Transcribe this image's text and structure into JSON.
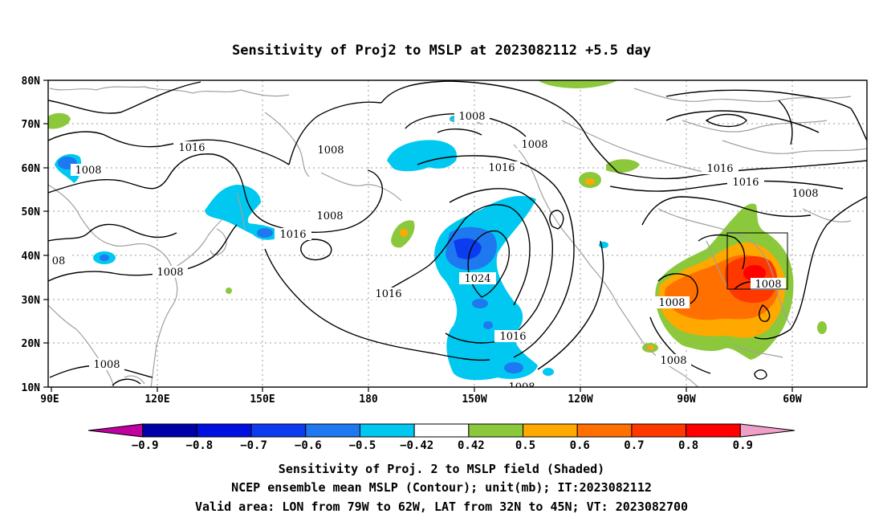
{
  "title": "Sensitivity of Proj2 to MSLP at 2023082112 +5.5 day",
  "lat_ticks": [
    "80N",
    "70N",
    "60N",
    "50N",
    "40N",
    "30N",
    "20N",
    "10N"
  ],
  "lon_ticks": [
    "90E",
    "120E",
    "150E",
    "180",
    "150W",
    "120W",
    "90W",
    "60W"
  ],
  "contour_labels": [
    "1008",
    "1008",
    "1016",
    "1008",
    "1008",
    "1008",
    "1016",
    "1016",
    "1008",
    "1016",
    "1016",
    "1024",
    "1016",
    "1016",
    "1008",
    "1008",
    "1008",
    "1008",
    "1008",
    "1008",
    "08"
  ],
  "colorbar": {
    "ticks": [
      "-0.9",
      "-0.8",
      "-0.7",
      "-0.6",
      "-0.5",
      "-0.42",
      "0.42",
      "0.5",
      "0.6",
      "0.7",
      "0.8",
      "0.9"
    ],
    "colors": [
      "#c000a0",
      "#0000a8",
      "#0010e0",
      "#0c3cf0",
      "#1e78f0",
      "#00c8f0",
      "#ffffff",
      "#8cc83c",
      "#ffa800",
      "#ff7000",
      "#ff3800",
      "#ff0000",
      "#f0a0c8"
    ]
  },
  "footer": {
    "line1": "Sensitivity of Proj. 2 to MSLP field (Shaded)",
    "line2": "NCEP ensemble mean MSLP (Contour); unit(mb); IT:2023082112",
    "line3": "Valid area: LON from 79W to 62W, LAT from 32N to 45N; VT: 2023082700"
  }
}
